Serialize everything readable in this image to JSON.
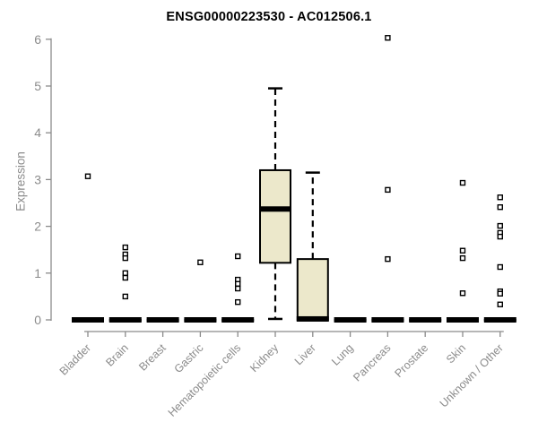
{
  "chart_data": {
    "type": "boxplot",
    "title": "ENSG00000223530 - AC012506.1",
    "ylabel": "Expression",
    "xlabel": "",
    "ylim": [
      0,
      6
    ],
    "yticks": [
      0,
      1,
      2,
      3,
      4,
      5,
      6
    ],
    "grid": false,
    "legend": "none",
    "categories": [
      "Bladder",
      "Brain",
      "Breast",
      "Gastric",
      "Hematopoietic cells",
      "Kidney",
      "Liver",
      "Lung",
      "Pancreas",
      "Prostate",
      "Skin",
      "Unknown / Other"
    ],
    "boxes": [
      {
        "category": "Bladder",
        "low": 0,
        "q1": 0,
        "median": 0,
        "q3": 0,
        "high": 0,
        "outliers": [
          3.07
        ]
      },
      {
        "category": "Brain",
        "low": 0,
        "q1": 0,
        "median": 0,
        "q3": 0,
        "high": 0,
        "outliers": [
          1.55,
          1.4,
          1.32,
          1.0,
          0.9,
          0.5
        ]
      },
      {
        "category": "Breast",
        "low": 0,
        "q1": 0,
        "median": 0,
        "q3": 0,
        "high": 0,
        "outliers": []
      },
      {
        "category": "Gastric",
        "low": 0,
        "q1": 0,
        "median": 0,
        "q3": 0,
        "high": 0,
        "outliers": [
          1.23
        ]
      },
      {
        "category": "Hematopoietic cells",
        "low": 0,
        "q1": 0,
        "median": 0,
        "q3": 0,
        "high": 0,
        "outliers": [
          1.36,
          0.86,
          0.77,
          0.67,
          0.38
        ]
      },
      {
        "category": "Kidney",
        "low": 0.02,
        "q1": 1.22,
        "median": 2.37,
        "q3": 3.2,
        "high": 4.95,
        "outliers": []
      },
      {
        "category": "Liver",
        "low": 0,
        "q1": 0,
        "median": 0.02,
        "q3": 1.3,
        "high": 3.15,
        "outliers": []
      },
      {
        "category": "Lung",
        "low": 0,
        "q1": 0,
        "median": 0,
        "q3": 0,
        "high": 0,
        "outliers": []
      },
      {
        "category": "Pancreas",
        "low": 0,
        "q1": 0,
        "median": 0,
        "q3": 0,
        "high": 0,
        "outliers": [
          6.03,
          2.78,
          1.3
        ]
      },
      {
        "category": "Prostate",
        "low": 0,
        "q1": 0,
        "median": 0,
        "q3": 0,
        "high": 0,
        "outliers": []
      },
      {
        "category": "Skin",
        "low": 0,
        "q1": 0,
        "median": 0,
        "q3": 0,
        "high": 0,
        "outliers": [
          2.93,
          1.48,
          1.32,
          0.57
        ]
      },
      {
        "category": "Unknown / Other",
        "low": 0,
        "q1": 0,
        "median": 0,
        "q3": 0,
        "high": 0,
        "outliers": [
          2.62,
          2.41,
          2.01,
          1.86,
          1.78,
          1.13,
          0.61,
          0.56,
          0.33
        ]
      }
    ],
    "colors": {
      "box_fill": "#ece8cb",
      "box_stroke": "#000000",
      "median": "#000000",
      "whisker": "#000000",
      "outlier_stroke": "#000000",
      "outlier_fill": "#ffffff",
      "axis": "#8b8b8b",
      "tick_label": "#8b8b8b",
      "title": "#000000"
    }
  }
}
